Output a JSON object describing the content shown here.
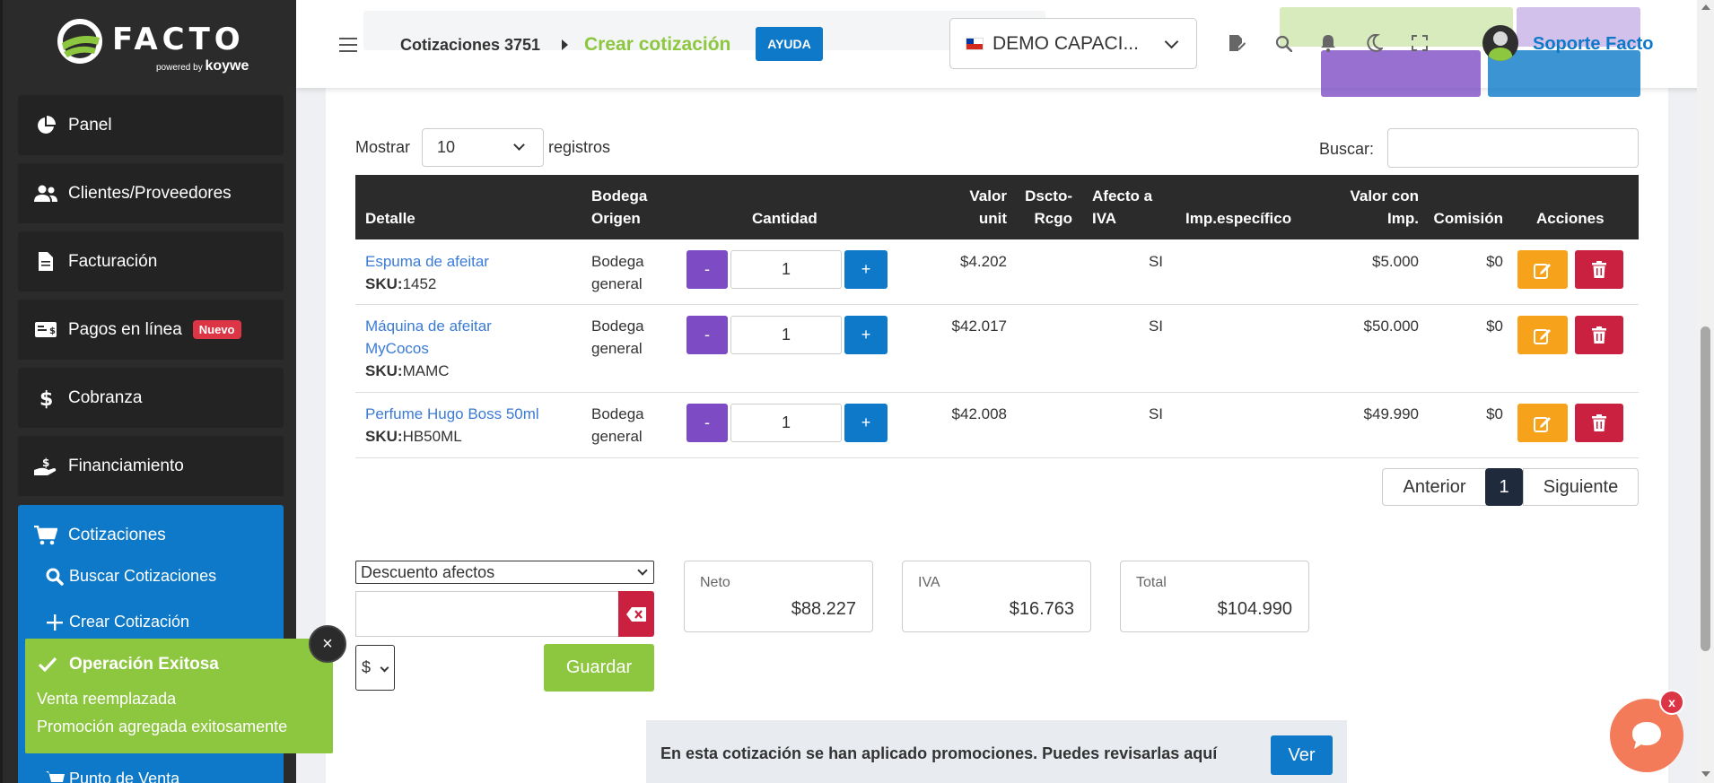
{
  "sidebar": {
    "logo_text": "FACTO",
    "logo_powered": "powered",
    "logo_by": "by",
    "logo_brand": "koywe",
    "items": [
      {
        "label": "Panel",
        "icon": "pie-chart-icon"
      },
      {
        "label": "Clientes/Proveedores",
        "icon": "users-icon"
      },
      {
        "label": "Facturación",
        "icon": "document-icon"
      },
      {
        "label": "Pagos en línea",
        "icon": "money-bill-icon",
        "badge": "Nuevo"
      },
      {
        "label": "Cobranza",
        "icon": "dollar-icon"
      },
      {
        "label": "Financiamiento",
        "icon": "hand-holding-dollar-icon"
      },
      {
        "label": "Cotizaciones",
        "icon": "cart-icon"
      }
    ],
    "subitems": [
      {
        "label": "Buscar Cotizaciones",
        "icon": "search-icon"
      },
      {
        "label": "Crear Cotización",
        "icon": "plus-icon"
      },
      {
        "label": "Punto de Venta",
        "icon": "cart-plus-icon"
      }
    ]
  },
  "header": {
    "breadcrumb_parent": "Cotizaciones 3751",
    "breadcrumb_current": "Crear cotización",
    "help_label": "AYUDA",
    "company": "DEMO CAPACI...",
    "user_name": "Soporte Facto"
  },
  "table_controls": {
    "show_label": "Mostrar",
    "show_value": "10",
    "records_label": "registros",
    "search_label": "Buscar:"
  },
  "table": {
    "headers": {
      "detalle": "Detalle",
      "bodega_1": "Bodega",
      "bodega_2": "Origen",
      "cantidad": "Cantidad",
      "valor_1": "Valor",
      "valor_2": "unit",
      "dscto_1": "Dscto-",
      "dscto_2": "Rcgo",
      "afecto_1": "Afecto a",
      "afecto_2": "IVA",
      "imp": "Imp.específico",
      "vimp_1": "Valor con",
      "vimp_2": "Imp.",
      "comision": "Comisión",
      "acciones": "Acciones"
    },
    "rows": [
      {
        "name_1": "Espuma de afeitar",
        "name_2": "",
        "sku_label": "SKU:",
        "sku": "1452",
        "bodega_1": "Bodega",
        "bodega_2": "general",
        "qty": "1",
        "minus": "-",
        "plus": "+",
        "valor": "$4.202",
        "afecto": "SI",
        "valor_imp": "$5.000",
        "comision": "$0"
      },
      {
        "name_1": "Máquina de afeitar",
        "name_2": "MyCocos",
        "sku_label": "SKU:",
        "sku": "MAMC",
        "bodega_1": "Bodega",
        "bodega_2": "general",
        "qty": "1",
        "minus": "-",
        "plus": "+",
        "valor": "$42.017",
        "afecto": "SI",
        "valor_imp": "$50.000",
        "comision": "$0"
      },
      {
        "name_1": "Perfume Hugo Boss 50ml",
        "name_2": "",
        "sku_label": "SKU:",
        "sku": "HB50ML",
        "bodega_1": "Bodega",
        "bodega_2": "general",
        "qty": "1",
        "minus": "-",
        "plus": "+",
        "valor": "$42.008",
        "afecto": "SI",
        "valor_imp": "$49.990",
        "comision": "$0"
      }
    ]
  },
  "pagination": {
    "prev": "Anterior",
    "page": "1",
    "next": "Siguiente"
  },
  "discount": {
    "type_value": "Descuento afectos",
    "currency": "$",
    "save_label": "Guardar"
  },
  "totals": {
    "neto_label": "Neto",
    "neto_value": "$88.227",
    "iva_label": "IVA",
    "iva_value": "$16.763",
    "total_label": "Total",
    "total_value": "$104.990"
  },
  "promo": {
    "text": "En esta cotización se han aplicado promociones. Puedes revisarlas aquí",
    "button": "Ver"
  },
  "toast": {
    "title": "Operación Exitosa",
    "line1": "Venta reemplazada",
    "line2": "Promoción agregada exitosamente",
    "close": "×"
  },
  "chat": {
    "close": "x"
  },
  "colors": {
    "accent_blue": "#0d79c8",
    "accent_green": "#8dc63f",
    "purple": "#7d4cc4",
    "orange": "#f7a21b",
    "red": "#c9213f",
    "sidebar_bg": "#2b2b2b"
  }
}
